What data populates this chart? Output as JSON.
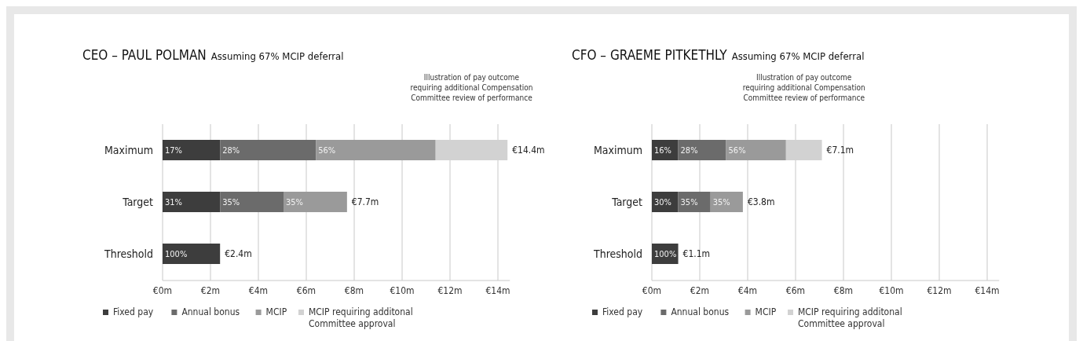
{
  "chart_data": [
    {
      "type": "bar",
      "orientation": "horizontal",
      "stacked": true,
      "title": "CEO – PAUL POLMAN",
      "subtitle": "Assuming 67% MCIP deferral",
      "categories": [
        "Maximum",
        "Target",
        "Threshold"
      ],
      "series": [
        {
          "name": "Fixed pay",
          "color": "#3d3d3d",
          "values": [
            2.4,
            2.4,
            2.4
          ]
        },
        {
          "name": "Annual bonus",
          "color": "#6b6b6b",
          "values": [
            4.0,
            2.65,
            null
          ]
        },
        {
          "name": "MCIP",
          "color": "#9a9a9a",
          "values": [
            5.0,
            2.65,
            null
          ]
        },
        {
          "name": "MCIP requiring additonal Committee approval",
          "color": "#d2d2d2",
          "values": [
            3.0,
            null,
            null
          ]
        }
      ],
      "totals": [
        "€14.4m",
        "€7.7m",
        "€2.4m"
      ],
      "xlim": [
        0,
        14.5
      ],
      "xticks": [
        {
          "value": 0,
          "label": "€0m"
        },
        {
          "value": 2,
          "label": "€2m"
        },
        {
          "value": 4,
          "label": "€4m"
        },
        {
          "value": 6,
          "label": "€6m"
        },
        {
          "value": 8,
          "label": "€8m"
        },
        {
          "value": 10,
          "label": "€10m"
        },
        {
          "value": 12,
          "label": "€12m"
        },
        {
          "value": 14,
          "label": "€14m"
        }
      ],
      "grid": "x",
      "legend": "bottom",
      "annotations": [
        "Illustration of pay outcome requiring additional Compensation Committee review of performance",
        {
          "text": "17%",
          "x": 0,
          "y": "Maximum"
        },
        {
          "text": "28%",
          "x": 2.4,
          "y": "Maximum"
        },
        {
          "text": "56%",
          "x": 6.4,
          "y": "Maximum"
        },
        {
          "text": "31%",
          "x": 0,
          "y": "Target"
        },
        {
          "text": "35%",
          "x": 2.4,
          "y": "Target"
        },
        {
          "text": "35%",
          "x": 5.05,
          "y": "Target"
        },
        {
          "text": "100%",
          "x": 0,
          "y": "Threshold"
        }
      ]
    },
    {
      "type": "bar",
      "orientation": "horizontal",
      "stacked": true,
      "title": "CFO – GRAEME PITKETHLY",
      "subtitle": "Assuming 67% MCIP deferral",
      "categories": [
        "Maximum",
        "Target",
        "Threshold"
      ],
      "series": [
        {
          "name": "Fixed pay",
          "color": "#3d3d3d",
          "values": [
            1.1,
            1.1,
            1.1
          ]
        },
        {
          "name": "Annual bonus",
          "color": "#6b6b6b",
          "values": [
            2.0,
            1.35,
            null
          ]
        },
        {
          "name": "MCIP",
          "color": "#9a9a9a",
          "values": [
            2.5,
            1.35,
            null
          ]
        },
        {
          "name": "MCIP requiring additonal Committee approval",
          "color": "#d2d2d2",
          "values": [
            1.5,
            null,
            null
          ]
        }
      ],
      "totals": [
        "€7.1m",
        "€3.8m",
        "€1.1m"
      ],
      "xlim": [
        0,
        14.5
      ],
      "xticks": [
        {
          "value": 0,
          "label": "€0m"
        },
        {
          "value": 2,
          "label": "€2m"
        },
        {
          "value": 4,
          "label": "€4m"
        },
        {
          "value": 6,
          "label": "€6m"
        },
        {
          "value": 8,
          "label": "€8m"
        },
        {
          "value": 10,
          "label": "€10m"
        },
        {
          "value": 12,
          "label": "€12m"
        },
        {
          "value": 14,
          "label": "€14m"
        }
      ],
      "grid": "x",
      "legend": "bottom",
      "annotations": [
        "Illustration of pay outcome requiring additional Compensation Committee review of performance",
        {
          "text": "16%",
          "x": 0,
          "y": "Maximum"
        },
        {
          "text": "28%",
          "x": 1.1,
          "y": "Maximum"
        },
        {
          "text": "56%",
          "x": 3.1,
          "y": "Maximum"
        },
        {
          "text": "30%",
          "x": 0,
          "y": "Target"
        },
        {
          "text": "35%",
          "x": 1.1,
          "y": "Target"
        },
        {
          "text": "35%",
          "x": 2.45,
          "y": "Target"
        },
        {
          "text": "100%",
          "x": 0,
          "y": "Threshold"
        }
      ]
    }
  ]
}
